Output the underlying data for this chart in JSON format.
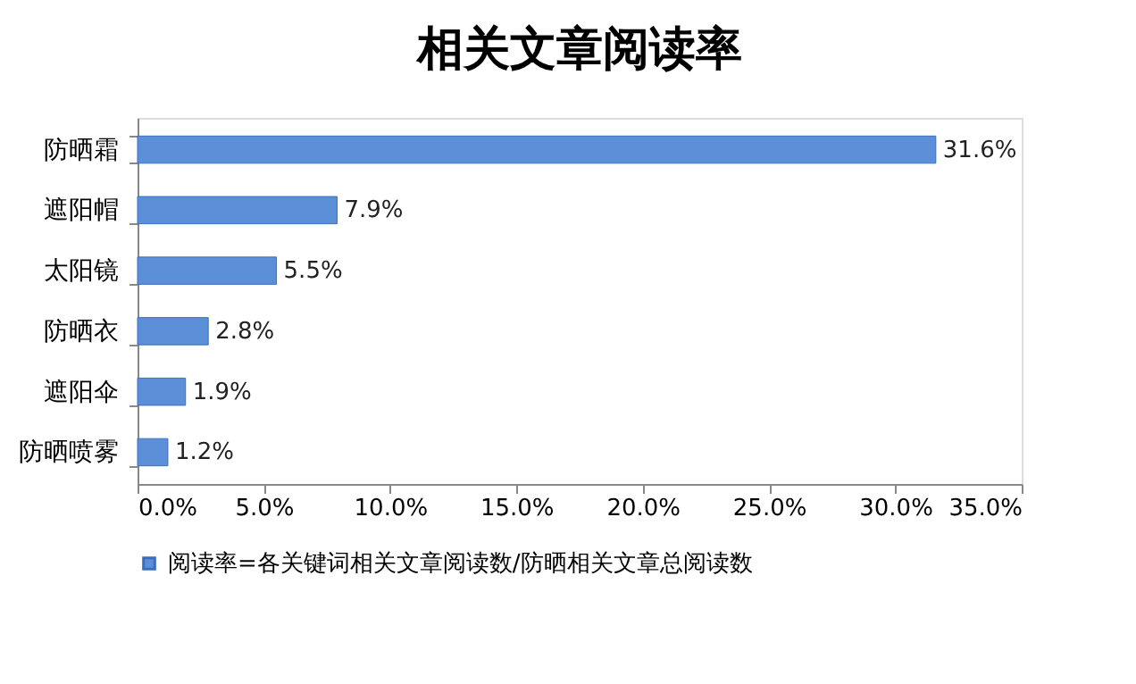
{
  "chart_data": {
    "type": "bar",
    "orientation": "horizontal",
    "title": "相关文章阅读率",
    "categories": [
      "防晒霜",
      "遮阳帽",
      "太阳镜",
      "防晒衣",
      "遮阳伞",
      "防晒喷雾"
    ],
    "series": [
      {
        "name": "阅读率=各关键词相关文章阅读数/防晒相关文章总阅读数",
        "color": "#5b8fd8",
        "values": [
          31.6,
          7.9,
          5.5,
          2.8,
          1.9,
          1.2
        ],
        "value_labels": [
          "31.6%",
          "7.9%",
          "5.5%",
          "2.8%",
          "1.9%",
          "1.2%"
        ]
      }
    ],
    "xlim": [
      0,
      35
    ],
    "xticks": [
      {
        "value": 0,
        "label": "0.0%"
      },
      {
        "value": 5,
        "label": "5.0%"
      },
      {
        "value": 10,
        "label": "10.0%"
      },
      {
        "value": 15,
        "label": "15.0%"
      },
      {
        "value": 20,
        "label": "20.0%"
      },
      {
        "value": 25,
        "label": "25.0%"
      },
      {
        "value": 30,
        "label": "30.0%"
      },
      {
        "value": 35,
        "label": "35.0%"
      }
    ],
    "grid": false,
    "legend": "bottom"
  }
}
